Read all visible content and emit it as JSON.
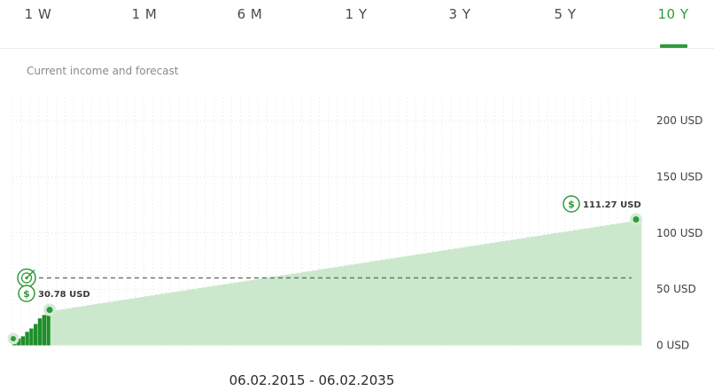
{
  "tabs": [
    {
      "label": "1 W",
      "active": false
    },
    {
      "label": "1 M",
      "active": false
    },
    {
      "label": "6 M",
      "active": false
    },
    {
      "label": "1 Y",
      "active": false
    },
    {
      "label": "3 Y",
      "active": false
    },
    {
      "label": "5 Y",
      "active": false
    },
    {
      "label": "10 Y",
      "active": true
    }
  ],
  "subtitle": "Current income and forecast",
  "date_range": "06.02.2015 - 06.02.2035",
  "colors": {
    "accent": "#2e9b39",
    "forecast_fill": "#cbe8cc",
    "actual_fill": "#1f8f2a",
    "target_line": "#6b6b6b"
  },
  "chart_data": {
    "type": "bar",
    "ylim": [
      0,
      200
    ],
    "yticks": [
      0,
      50,
      100,
      150,
      200
    ],
    "ytick_labels": [
      "0 USD",
      "50 USD",
      "100 USD",
      "150 USD",
      "200 USD"
    ],
    "grid": true,
    "actual": {
      "values": [
        6,
        6,
        8,
        12,
        15,
        19,
        24,
        27,
        30.78
      ],
      "end_label": "30.78 USD"
    },
    "forecast": {
      "start": 30.78,
      "end": 111.27,
      "count": 113,
      "end_label": "111.27 USD"
    },
    "target_value": 60,
    "icons": [
      "target-icon",
      "dollar-coin-icon"
    ]
  }
}
